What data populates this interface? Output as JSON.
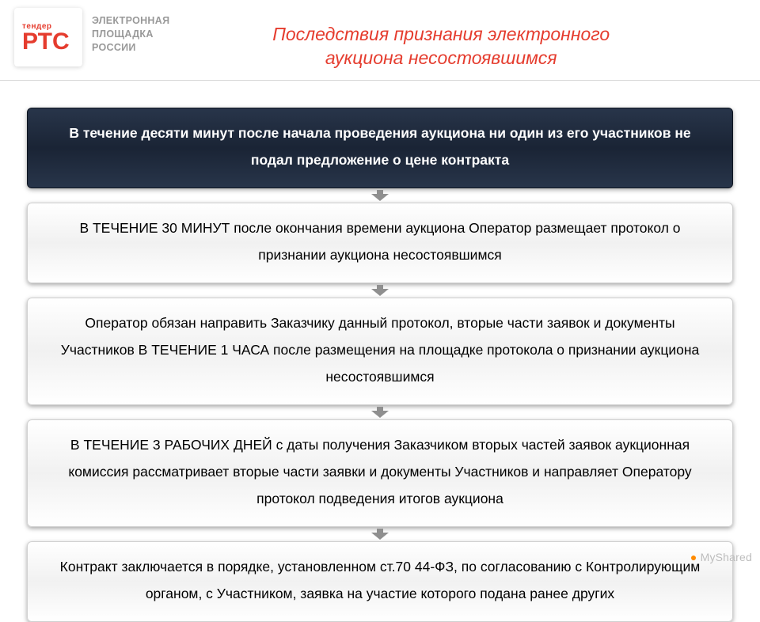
{
  "logo": {
    "tender": "тендер",
    "rtc": "РТС",
    "tagline_l1": "ЭЛЕКТРОННАЯ",
    "tagline_l2": "ПЛОЩАДКА",
    "tagline_l3": "РОССИИ"
  },
  "title": {
    "line1": "Последствия признания электронного",
    "line2": "аукциона несостоявшимся"
  },
  "flow": {
    "boxes": [
      {
        "variant": "dark",
        "text": "В течение десяти минут после начала проведения аукциона ни один из его участников не подал предложение о цене контракта"
      },
      {
        "variant": "light",
        "text": "В ТЕЧЕНИЕ 30 МИНУТ после окончания времени аукциона Оператор размещает протокол о признании аукциона несостоявшимся"
      },
      {
        "variant": "light",
        "text": "Оператор обязан направить Заказчику данный протокол, вторые части заявок  и документы Участников В ТЕЧЕНИЕ 1 ЧАСА после размещения на площадке протокола о признании аукциона несостоявшимся"
      },
      {
        "variant": "light",
        "text": "В ТЕЧЕНИЕ 3 РАБОЧИХ ДНЕЙ с даты получения Заказчиком вторых частей заявок аукционная комиссия рассматривает вторые части заявки и документы Участников  и направляет Оператору протокол подведения итогов аукциона"
      },
      {
        "variant": "light",
        "text": "Контракт заключается в порядке, установленном ст.70 44-ФЗ, по согласованию с Контролирующим органом, с Участником, заявка на участие которого подана ранее других"
      }
    ],
    "arrow": {
      "fill": "#8f8f8f",
      "width": 22,
      "height": 14
    }
  },
  "colors": {
    "accent": "#e53c2e",
    "header_rule": "#d9d9d9",
    "dark_box_bg_top": "#28354a",
    "dark_box_bg_mid": "#1a2435",
    "light_box_border": "#d0d0d0",
    "watermark": "#bdbdbd"
  },
  "watermark": {
    "text": "MyShared"
  }
}
